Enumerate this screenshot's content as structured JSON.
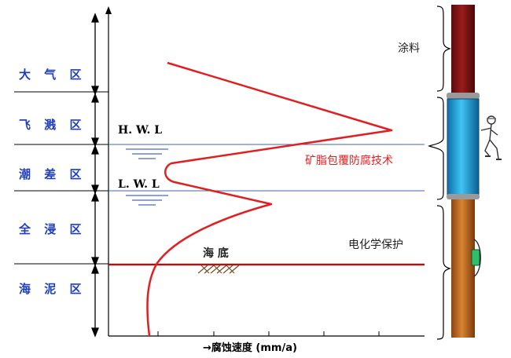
{
  "zones": [
    {
      "id": "atmosphere",
      "label": "大 气 区"
    },
    {
      "id": "splash",
      "label": "飞 溅 区"
    },
    {
      "id": "tidal",
      "label": "潮 差 区"
    },
    {
      "id": "immersion",
      "label": "全 浸 区"
    },
    {
      "id": "mud",
      "label": "海 泥 区"
    }
  ],
  "levels": {
    "hwl": "H. W. L",
    "lwl": "L. W. L"
  },
  "seabed": "海 底",
  "x_axis_label": "→腐蚀速度 (mm/a)",
  "protections": {
    "coating": "涂料",
    "petrolatum": "矿脂包覆防腐技术",
    "cathodic": "电化学保护"
  },
  "colors": {
    "zone_text": "#1f3dbd",
    "curve": "#e02020",
    "water_line": "#4466aa",
    "seabed_line": "#a01818",
    "pile_top": "#7a1212",
    "pile_mid": "#1e9fd8",
    "pile_bottom": "#c26a1c",
    "anode": "#2fbf6a"
  }
}
